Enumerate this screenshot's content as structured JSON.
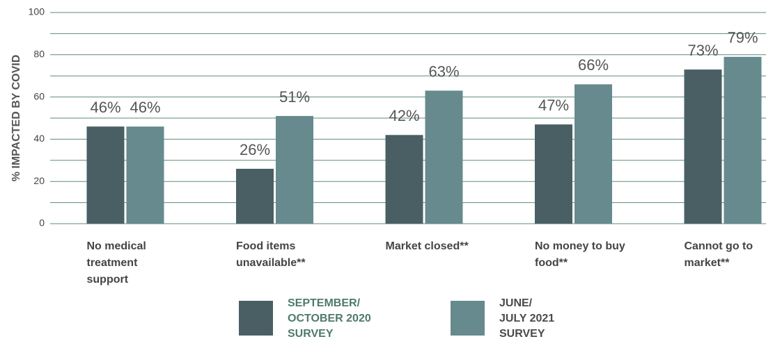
{
  "chart_data": {
    "type": "bar",
    "y_axis_label": "% IMPACTED BY COVID",
    "categories": [
      "No medical treatment support",
      "Food items unavailable**",
      "Market closed**",
      "No money to buy food**",
      "Cannot go to market**"
    ],
    "series": [
      {
        "name": "SEPTEMBER/ OCTOBER 2020 SURVEY",
        "color": "#4a5f63",
        "legend_text_color": "#4f7a6a",
        "values": [
          46,
          26,
          42,
          47,
          73
        ],
        "value_labels": [
          "46%",
          "26%",
          "42%",
          "47%",
          "73%"
        ]
      },
      {
        "name": "JUNE/ JULY 2021 SURVEY",
        "color": "#668a8e",
        "legend_text_color": "#4a4a4a",
        "values": [
          46,
          51,
          63,
          66,
          79
        ],
        "value_labels": [
          "46%",
          "51%",
          "63%",
          "66%",
          "79%"
        ]
      }
    ],
    "ylim": [
      0,
      100
    ],
    "yticks": [
      0,
      20,
      40,
      60,
      80,
      100
    ],
    "minor_yticks": [
      10,
      30,
      50,
      70,
      90
    ],
    "grid": true,
    "grid_color": "#5c8a7c",
    "legend": "bottom"
  }
}
